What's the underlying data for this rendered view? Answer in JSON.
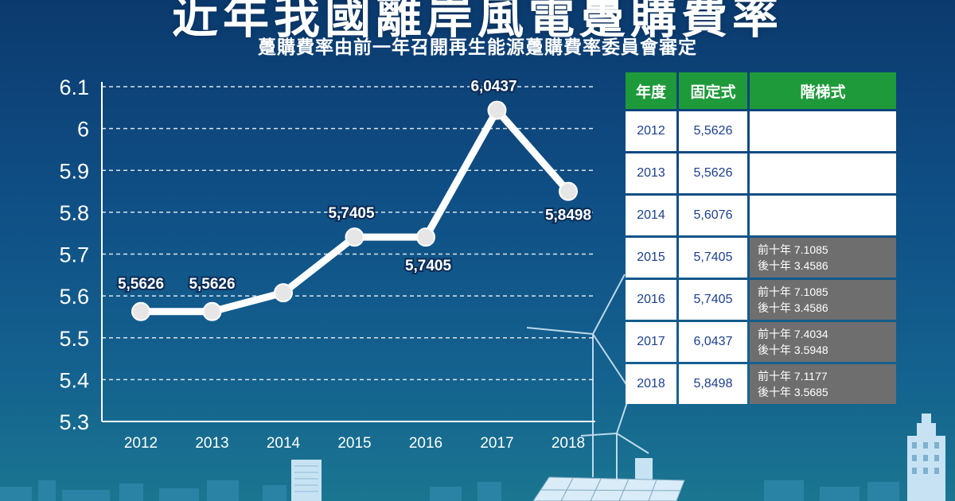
{
  "header": {
    "title": "近年我國離岸風電躉購費率",
    "subtitle": "躉購費率由前一年召開再生能源躉購費率委員會審定"
  },
  "chart_data": {
    "type": "line",
    "x": [
      "2012",
      "2013",
      "2014",
      "2015",
      "2016",
      "2017",
      "2018"
    ],
    "values": [
      5.5626,
      5.5626,
      5.6076,
      5.7405,
      5.7405,
      6.0437,
      5.8498
    ],
    "data_labels": [
      "5,5626",
      "5,5626",
      "",
      "5,7405",
      "5,7405",
      "6,0437",
      "5,8498"
    ],
    "y_ticks": [
      "5.3",
      "5.4",
      "5.5",
      "5.6",
      "5.7",
      "5.8",
      "5.9",
      "6",
      "6.1"
    ],
    "ylim": [
      5.3,
      6.1
    ],
    "grid": true,
    "colors": {
      "line": "#ffffff",
      "marker": "#e6e6e6",
      "grid": "#ffffff"
    }
  },
  "table": {
    "headers": [
      "年度",
      "固定式",
      "階梯式"
    ],
    "rows": [
      {
        "year": "2012",
        "fixed": "5,5626",
        "tier1": "",
        "tier2": ""
      },
      {
        "year": "2013",
        "fixed": "5,5626",
        "tier1": "",
        "tier2": ""
      },
      {
        "year": "2014",
        "fixed": "5,6076",
        "tier1": "",
        "tier2": ""
      },
      {
        "year": "2015",
        "fixed": "5,7405",
        "tier1": "前十年 7.1085",
        "tier2": "後十年 3.4586"
      },
      {
        "year": "2016",
        "fixed": "5,7405",
        "tier1": "前十年 7.1085",
        "tier2": "後十年 3.4586"
      },
      {
        "year": "2017",
        "fixed": "6,0437",
        "tier1": "前十年 7.4034",
        "tier2": "後十年 3.5948"
      },
      {
        "year": "2018",
        "fixed": "5,8498",
        "tier1": "前十年 7.1177",
        "tier2": "後十年 3.5685"
      }
    ],
    "colors": {
      "header": "#1f9a3a",
      "tiered": "#6e6e6e",
      "cell_text": "#1c3f8f"
    }
  }
}
